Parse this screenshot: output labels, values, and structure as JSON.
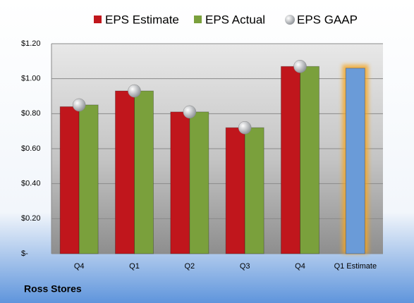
{
  "chart_data": {
    "type": "bar",
    "caption": "Ross Stores",
    "categories": [
      "Q4",
      "Q1",
      "Q2",
      "Q3",
      "Q4",
      "Q1 Estimate"
    ],
    "series": [
      {
        "name": "EPS Estimate",
        "color": "#c0161c",
        "colors": [
          "#c0161c",
          "#c0161c",
          "#c0161c",
          "#c0161c",
          "#c0161c",
          "#6a9bd8"
        ],
        "values": [
          0.84,
          0.93,
          0.81,
          0.72,
          1.07,
          1.06
        ]
      },
      {
        "name": "EPS Actual",
        "color": "#7aa03c",
        "values": [
          0.85,
          0.93,
          0.81,
          0.72,
          1.07,
          null
        ]
      },
      {
        "name": "EPS GAAP",
        "type": "scatter",
        "color": "#b8bcc0",
        "values": [
          0.85,
          0.93,
          0.81,
          0.72,
          1.07,
          null
        ]
      }
    ],
    "ylim": [
      0,
      1.2
    ],
    "yticks": [
      {
        "value": 0,
        "label": "$-"
      },
      {
        "value": 0.2,
        "label": "$0.20"
      },
      {
        "value": 0.4,
        "label": "$0.40"
      },
      {
        "value": 0.6,
        "label": "$0.60"
      },
      {
        "value": 0.8,
        "label": "$0.80"
      },
      {
        "value": 1.0,
        "label": "$1.00"
      },
      {
        "value": 1.2,
        "label": "$1.20"
      }
    ],
    "grid": true
  }
}
